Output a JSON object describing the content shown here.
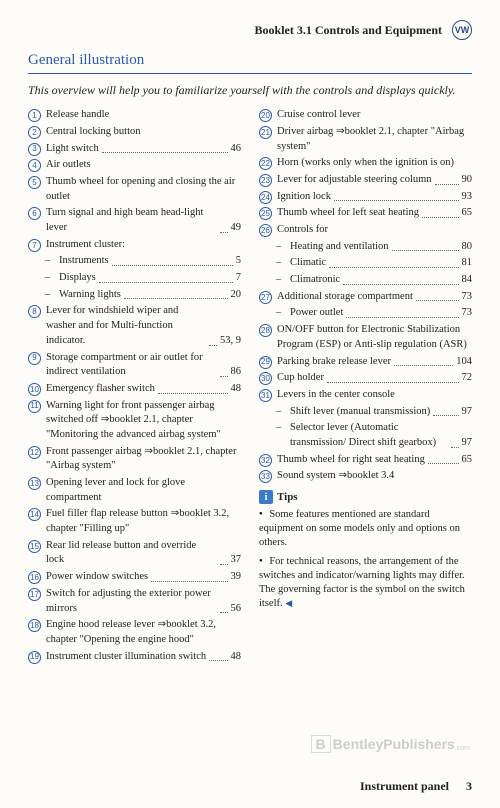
{
  "header": {
    "booklet": "Booklet 3.1  Controls and Equipment",
    "logo": "VW"
  },
  "section_title": "General illustration",
  "intro": "This overview will help you to familiarize yourself with the controls and displays quickly.",
  "left": [
    {
      "n": "1",
      "t": "Release handle"
    },
    {
      "n": "2",
      "t": "Central locking button"
    },
    {
      "n": "3",
      "t": "Light switch",
      "p": "46"
    },
    {
      "n": "4",
      "t": "Air outlets"
    },
    {
      "n": "5",
      "t": "Thumb wheel for opening and closing the air outlet"
    },
    {
      "n": "6",
      "t": "Turn signal and high beam head-light lever",
      "p": "49"
    },
    {
      "n": "7",
      "t": "Instrument cluster:"
    },
    {
      "dash": true,
      "t": "Instruments",
      "p": "5"
    },
    {
      "dash": true,
      "t": "Displays",
      "p": "7"
    },
    {
      "dash": true,
      "t": "Warning lights",
      "p": "20"
    },
    {
      "n": "8",
      "t": "Lever for windshield wiper and washer and for Multi-function indicator.",
      "p": "53, 9"
    },
    {
      "n": "9",
      "t": "Storage compartment or air outlet for indirect ventilation",
      "p": "86"
    },
    {
      "n": "10",
      "t": "Emergency flasher switch",
      "p": "48"
    },
    {
      "n": "11",
      "t": "Warning light for front passenger airbag switched off  ⇒booklet 2.1, chapter \"Monitoring the advanced airbag system\""
    },
    {
      "n": "12",
      "t": "Front passenger airbag ⇒booklet 2.1, chapter \"Airbag system\""
    },
    {
      "n": "13",
      "t": "Opening lever and lock for glove compartment"
    },
    {
      "n": "14",
      "t": "Fuel filler flap release button ⇒booklet 3.2, chapter \"Filling up\""
    },
    {
      "n": "15",
      "t": "Rear lid release button and override lock",
      "p": "37"
    },
    {
      "n": "16",
      "t": "Power window switches",
      "p": "39"
    },
    {
      "n": "17",
      "t": "Switch for adjusting the exterior power mirrors",
      "p": "56"
    },
    {
      "n": "18",
      "t": "Engine hood release lever ⇒booklet 3.2, chapter \"Opening the engine hood\""
    },
    {
      "n": "19",
      "t": "Instrument cluster illumination switch",
      "p": "48"
    }
  ],
  "right": [
    {
      "n": "20",
      "t": "Cruise control lever"
    },
    {
      "n": "21",
      "t": "Driver airbag ⇒booklet 2.1, chapter \"Airbag system\""
    },
    {
      "n": "22",
      "t": "Horn (works only when the ignition is on)"
    },
    {
      "n": "23",
      "t": "Lever for adjustable steering column",
      "p": "90"
    },
    {
      "n": "24",
      "t": "Ignition lock",
      "p": "93"
    },
    {
      "n": "25",
      "t": "Thumb wheel for left seat heating",
      "p": "65"
    },
    {
      "n": "26",
      "t": "Controls for"
    },
    {
      "dash": true,
      "t": "Heating and ventilation",
      "p": "80"
    },
    {
      "dash": true,
      "t": "Climatic",
      "p": "81"
    },
    {
      "dash": true,
      "t": "Climatronic",
      "p": "84"
    },
    {
      "n": "27",
      "t": "Additional storage compartment",
      "dot": true,
      "p": "73"
    },
    {
      "dash": true,
      "t": "Power outlet",
      "p": "73"
    },
    {
      "n": "28",
      "t": "ON/OFF button for Electronic Stabilization Program (ESP) or  Anti-slip regulation (ASR)"
    },
    {
      "n": "29",
      "t": "Parking brake release lever",
      "p": "104"
    },
    {
      "n": "30",
      "t": "Cup holder",
      "p": "72"
    },
    {
      "n": "31",
      "t": "Levers in the center console"
    },
    {
      "dash": true,
      "t": "Shift lever (manual transmission)",
      "p": "97"
    },
    {
      "dash": true,
      "t": "Selector lever (Automatic transmission/ Direct shift gearbox)",
      "dot": true,
      "p": "97"
    },
    {
      "n": "32",
      "t": "Thumb wheel for right seat heating",
      "p": "65"
    },
    {
      "n": "33",
      "t": "Sound system ⇒booklet 3.4"
    }
  ],
  "tips": {
    "title": "Tips",
    "items": [
      "Some features mentioned are standard equipment on some models only and options on others.",
      "For technical reasons, the arrangement of the switches and indicator/warning lights may differ. The governing factor is the symbol on the switch itself."
    ]
  },
  "watermark": {
    "b": "B",
    "name": "BentleyPublishers",
    "dot": ".com"
  },
  "footer": {
    "section": "Instrument panel",
    "page": "3"
  },
  "colors": {
    "accent": "#2a5aaa"
  }
}
